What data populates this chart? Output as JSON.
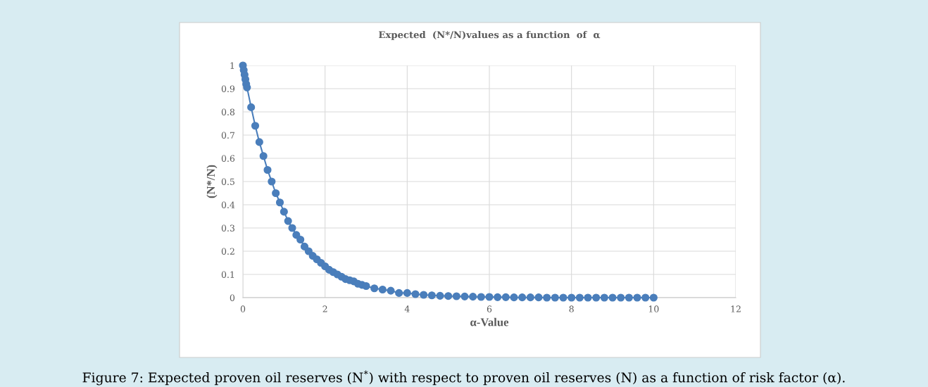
{
  "chart_data": {
    "type": "line",
    "title": "Expected  (N*/N)values as a function  of  α",
    "xlabel": "α-Value",
    "ylabel": "(N*/N)",
    "x": [
      0,
      0.02,
      0.04,
      0.06,
      0.08,
      0.1,
      0.2,
      0.3,
      0.4,
      0.5,
      0.6,
      0.7,
      0.8,
      0.9,
      1.0,
      1.1,
      1.2,
      1.3,
      1.4,
      1.5,
      1.6,
      1.7,
      1.8,
      1.9,
      2.0,
      2.1,
      2.2,
      2.3,
      2.4,
      2.5,
      2.6,
      2.7,
      2.8,
      2.9,
      3.0,
      3.2,
      3.4,
      3.6,
      3.8,
      4.0,
      4.2,
      4.4,
      4.6,
      4.8,
      5.0,
      5.2,
      5.4,
      5.6,
      5.8,
      6.0,
      6.2,
      6.4,
      6.6,
      6.8,
      7.0,
      7.2,
      7.4,
      7.6,
      7.8,
      8.0,
      8.2,
      8.4,
      8.6,
      8.8,
      9.0,
      9.2,
      9.4,
      9.6,
      9.8,
      10.0
    ],
    "series": [
      {
        "color": "#4a7ebb",
        "values": [
          1,
          0.98,
          0.96,
          0.94,
          0.92,
          0.905,
          0.82,
          0.74,
          0.67,
          0.61,
          0.55,
          0.5,
          0.45,
          0.41,
          0.37,
          0.33,
          0.3,
          0.27,
          0.25,
          0.22,
          0.2,
          0.18,
          0.165,
          0.15,
          0.135,
          0.12,
          0.11,
          0.1,
          0.09,
          0.08,
          0.075,
          0.07,
          0.06,
          0.055,
          0.05,
          0.04,
          0.035,
          0.03,
          0.02,
          0.02,
          0.015,
          0.012,
          0.01,
          0.008,
          0.007,
          0.006,
          0.005,
          0.004,
          0.003,
          0.003,
          0.002,
          0.002,
          0.001,
          0.001,
          0.001,
          0.001,
          0,
          0,
          0,
          0,
          0,
          0,
          0,
          0,
          0,
          0,
          0,
          0,
          0,
          0
        ]
      }
    ],
    "xlim": [
      0,
      12
    ],
    "xticks": [
      0,
      2,
      4,
      6,
      8,
      10,
      12
    ],
    "ylim": [
      0,
      1
    ],
    "yticks": [
      0,
      0.1,
      0.2,
      0.3,
      0.4,
      0.5,
      0.6,
      0.7,
      0.8,
      0.9,
      1
    ],
    "grid": true,
    "marker": "circle",
    "line_style": "solid",
    "annotations": [
      "Figure 7: Expected proven oil reserves (N$^{*}$) with respect to proven oil reserves (N) as a function of risk factor (α)."
    ]
  }
}
